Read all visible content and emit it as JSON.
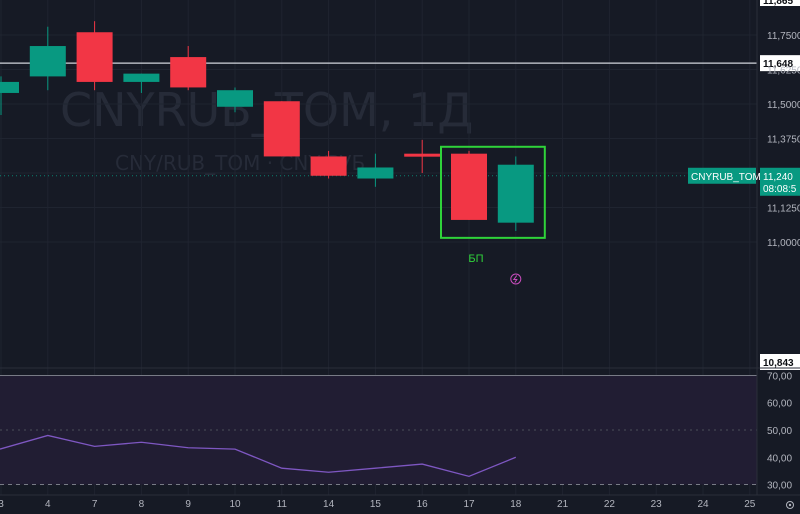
{
  "watermark": {
    "title": "CNYRUB_TOM, 1Д",
    "subtitle": "CNY/RUB_TOM · CNY/РУБ"
  },
  "chart_data": [
    {
      "type": "candlestick",
      "x_ticks": [
        "3",
        "4",
        "7",
        "8",
        "9",
        "10",
        "11",
        "14",
        "15",
        "16",
        "17",
        "18",
        "21",
        "22",
        "23",
        "24",
        "25"
      ],
      "price_ticks": [
        "11,7500",
        "11,6250",
        "11,5000",
        "11,3750",
        "11,2500",
        "11,1250",
        "11,0000"
      ],
      "ylim": [
        10.95,
        11.8
      ],
      "candles": [
        {
          "x": "3",
          "open": 11.54,
          "high": 11.6,
          "low": 11.46,
          "close": 11.58,
          "dir": "up"
        },
        {
          "x": "4",
          "open": 11.6,
          "high": 11.78,
          "low": 11.55,
          "close": 11.71,
          "dir": "up"
        },
        {
          "x": "7",
          "open": 11.76,
          "high": 11.8,
          "low": 11.55,
          "close": 11.58,
          "dir": "down"
        },
        {
          "x": "8",
          "open": 11.58,
          "high": 11.61,
          "low": 11.54,
          "close": 11.61,
          "dir": "up"
        },
        {
          "x": "9",
          "open": 11.67,
          "high": 11.71,
          "low": 11.55,
          "close": 11.56,
          "dir": "down"
        },
        {
          "x": "10",
          "open": 11.49,
          "high": 11.56,
          "low": 11.47,
          "close": 11.55,
          "dir": "up"
        },
        {
          "x": "11",
          "open": 11.51,
          "high": 11.51,
          "low": 11.31,
          "close": 11.31,
          "dir": "down"
        },
        {
          "x": "14",
          "open": 11.31,
          "high": 11.33,
          "low": 11.23,
          "close": 11.24,
          "dir": "down"
        },
        {
          "x": "15",
          "open": 11.23,
          "high": 11.32,
          "low": 11.2,
          "close": 11.27,
          "dir": "up"
        },
        {
          "x": "16",
          "open": 11.32,
          "high": 11.37,
          "low": 11.25,
          "close": 11.31,
          "dir": "down"
        },
        {
          "x": "17",
          "open": 11.32,
          "high": 11.33,
          "low": 11.08,
          "close": 11.08,
          "dir": "down"
        },
        {
          "x": "18",
          "open": 11.07,
          "high": 11.31,
          "low": 11.04,
          "close": 11.28,
          "dir": "up"
        }
      ],
      "levels": [
        {
          "label": "11,648",
          "value": 11.648
        }
      ],
      "current_price": {
        "symbol": "CNYRUB_TOM",
        "value": "11,240",
        "value_num": 11.24,
        "timer": "08:08:5"
      },
      "low_marker": {
        "label": "10,843"
      },
      "top_marker": {
        "label": "11,865"
      },
      "annotation": {
        "label": "БП",
        "target": [
          "17",
          "18"
        ]
      }
    },
    {
      "type": "line",
      "name": "",
      "y_ticks": [
        "70,00",
        "60,00",
        "50,00",
        "40,00",
        "30,00"
      ],
      "ylim": [
        28,
        72
      ],
      "band": [
        30,
        70
      ],
      "midline": 50,
      "x": [
        "3",
        "4",
        "7",
        "8",
        "9",
        "10",
        "11",
        "14",
        "15",
        "16",
        "17",
        "18"
      ],
      "values": [
        43,
        48,
        44,
        45.5,
        43.5,
        43,
        36,
        34.5,
        36,
        37.5,
        33,
        40
      ]
    }
  ],
  "colors": {
    "background": "#161a25",
    "up": "#089981",
    "down": "#f23645",
    "rsi_line": "#7e57c2",
    "rsi_band": "#211d33",
    "highlight": "#2fd33a"
  },
  "icons": {
    "alert_icon": "lightning-circle-icon",
    "settings_icon": "gear-icon"
  }
}
